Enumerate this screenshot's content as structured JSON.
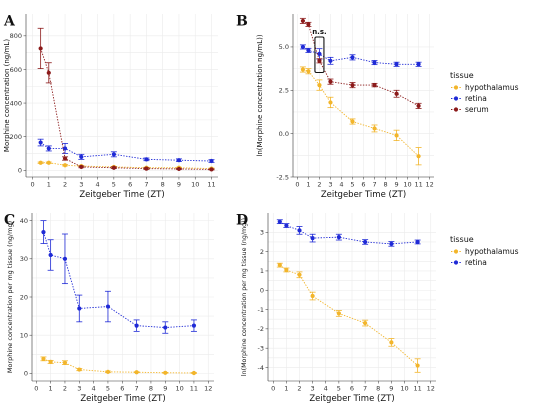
{
  "colors": {
    "hypothalamus": "#f2b52b",
    "retina": "#1f2ad6",
    "serum": "#8b1a1a"
  },
  "chart_data": [
    {
      "id": "A",
      "panel_letter": "A",
      "type": "line",
      "xlabel": "Zeitgeber Time (ZT)",
      "ylabel": "Morphine concentration (ng/mL)",
      "xlim": [
        -0.4,
        11.4
      ],
      "ylim": [
        -40,
        930
      ],
      "xticks": [
        0,
        1,
        2,
        3,
        4,
        5,
        6,
        7,
        8,
        9,
        10,
        11
      ],
      "yticks": [
        0,
        200,
        400,
        600,
        800
      ],
      "series": [
        {
          "key": "hypothalamus",
          "x": [
            0.5,
            1,
            2,
            3,
            5,
            7,
            9,
            11
          ],
          "y": [
            45,
            45,
            30,
            25,
            20,
            15,
            15,
            10
          ],
          "err": [
            4,
            4,
            4,
            3,
            3,
            3,
            3,
            3
          ]
        },
        {
          "key": "retina",
          "x": [
            0.5,
            1,
            2,
            3,
            5,
            7,
            9,
            11
          ],
          "y": [
            165,
            130,
            130,
            80,
            95,
            65,
            60,
            55
          ],
          "err": [
            20,
            15,
            30,
            15,
            15,
            8,
            8,
            8
          ]
        },
        {
          "key": "serum",
          "x": [
            0.5,
            1,
            2,
            3,
            5,
            7,
            9,
            11
          ],
          "y": [
            725,
            580,
            70,
            20,
            15,
            10,
            8,
            5
          ],
          "err": [
            120,
            60,
            10,
            5,
            5,
            5,
            3,
            3
          ]
        }
      ]
    },
    {
      "id": "B",
      "panel_letter": "B",
      "type": "line",
      "xlabel": "Zeitgeber Time (ZT)",
      "ylabel": "ln(Morphine concentration ng/mL))",
      "xlim": [
        -0.4,
        12.4
      ],
      "ylim": [
        -2.5,
        6.9
      ],
      "xticks": [
        0,
        1,
        2,
        3,
        4,
        5,
        6,
        7,
        8,
        9,
        10,
        11,
        12
      ],
      "yticks": [
        -2.5,
        0.0,
        2.5,
        5.0
      ],
      "ytick_labels": [
        "-2.5",
        "0.0",
        "2.5",
        "5.0"
      ],
      "annotation": {
        "text": "n.s.",
        "x": 2,
        "y_low": 3.7,
        "y_high": 5.4
      },
      "legend": {
        "title": "tissue",
        "entries": [
          "hypothalamus",
          "retina",
          "serum"
        ]
      },
      "series": [
        {
          "key": "hypothalamus",
          "x": [
            0.5,
            1,
            2,
            3,
            5,
            7,
            9,
            11
          ],
          "y": [
            3.7,
            3.6,
            2.8,
            1.8,
            0.7,
            0.3,
            -0.1,
            -1.3
          ],
          "err": [
            0.15,
            0.15,
            0.3,
            0.3,
            0.15,
            0.2,
            0.3,
            0.5
          ]
        },
        {
          "key": "retina",
          "x": [
            0.5,
            1,
            2,
            3,
            5,
            7,
            9,
            11
          ],
          "y": [
            5.0,
            4.8,
            4.6,
            4.2,
            4.4,
            4.1,
            4.0,
            4.0
          ],
          "err": [
            0.12,
            0.12,
            0.3,
            0.2,
            0.15,
            0.12,
            0.12,
            0.12
          ]
        },
        {
          "key": "serum",
          "x": [
            0.5,
            1,
            2,
            3,
            5,
            7,
            9,
            11
          ],
          "y": [
            6.5,
            6.3,
            4.2,
            3.0,
            2.8,
            2.8,
            2.3,
            1.6
          ],
          "err": [
            0.15,
            0.12,
            0.12,
            0.15,
            0.15,
            0.1,
            0.2,
            0.15
          ]
        }
      ]
    },
    {
      "id": "C",
      "panel_letter": "C",
      "type": "line",
      "xlabel": "Zeitgeber Time (ZT)",
      "ylabel": "Morphine concentration per mg tissue (ng/mg)",
      "xlim": [
        -0.3,
        12.4
      ],
      "ylim": [
        -2,
        42
      ],
      "xticks": [
        0,
        1,
        2,
        3,
        4,
        5,
        6,
        7,
        8,
        9,
        10,
        11,
        12
      ],
      "yticks": [
        0,
        10,
        20,
        30,
        40
      ],
      "series": [
        {
          "key": "hypothalamus",
          "x": [
            0.5,
            1,
            2,
            3,
            5,
            7,
            9,
            11
          ],
          "y": [
            3.8,
            3.0,
            2.8,
            1.0,
            0.4,
            0.3,
            0.15,
            0.1
          ],
          "err": [
            0.5,
            0.4,
            0.5,
            0.3,
            0.2,
            0.1,
            0.1,
            0.1
          ]
        },
        {
          "key": "retina",
          "x": [
            0.5,
            1,
            2,
            3,
            5,
            7,
            9,
            11
          ],
          "y": [
            37,
            31,
            30,
            17,
            17.5,
            12.5,
            12,
            12.5
          ],
          "err": [
            3,
            4,
            6.5,
            3.5,
            4,
            1.5,
            1.5,
            1.5
          ]
        }
      ]
    },
    {
      "id": "D",
      "panel_letter": "D",
      "type": "line",
      "xlabel": "Zeitgeber Time (ZT)",
      "ylabel": "ln(Morphine concentration per mg tissue (ng/mg))",
      "xlim": [
        -0.4,
        12.4
      ],
      "ylim": [
        -4.7,
        4.0
      ],
      "xticks": [
        0,
        1,
        2,
        3,
        4,
        5,
        6,
        7,
        8,
        9,
        10,
        11,
        12
      ],
      "yticks": [
        -4,
        -3,
        -2,
        -1,
        0,
        1,
        2,
        3
      ],
      "legend": {
        "title": "tissue",
        "entries": [
          "hypothalamus",
          "retina"
        ]
      },
      "series": [
        {
          "key": "hypothalamus",
          "x": [
            0.5,
            1,
            2,
            3,
            5,
            7,
            9,
            11
          ],
          "y": [
            1.3,
            1.05,
            0.8,
            -0.3,
            -1.2,
            -1.7,
            -2.7,
            -3.9
          ],
          "err": [
            0.1,
            0.1,
            0.15,
            0.2,
            0.15,
            0.15,
            0.2,
            0.35
          ]
        },
        {
          "key": "retina",
          "x": [
            0.5,
            1,
            2,
            3,
            5,
            7,
            9,
            11
          ],
          "y": [
            3.55,
            3.35,
            3.1,
            2.7,
            2.75,
            2.5,
            2.4,
            2.5
          ],
          "err": [
            0.1,
            0.1,
            0.2,
            0.2,
            0.15,
            0.12,
            0.12,
            0.1
          ]
        }
      ]
    }
  ]
}
